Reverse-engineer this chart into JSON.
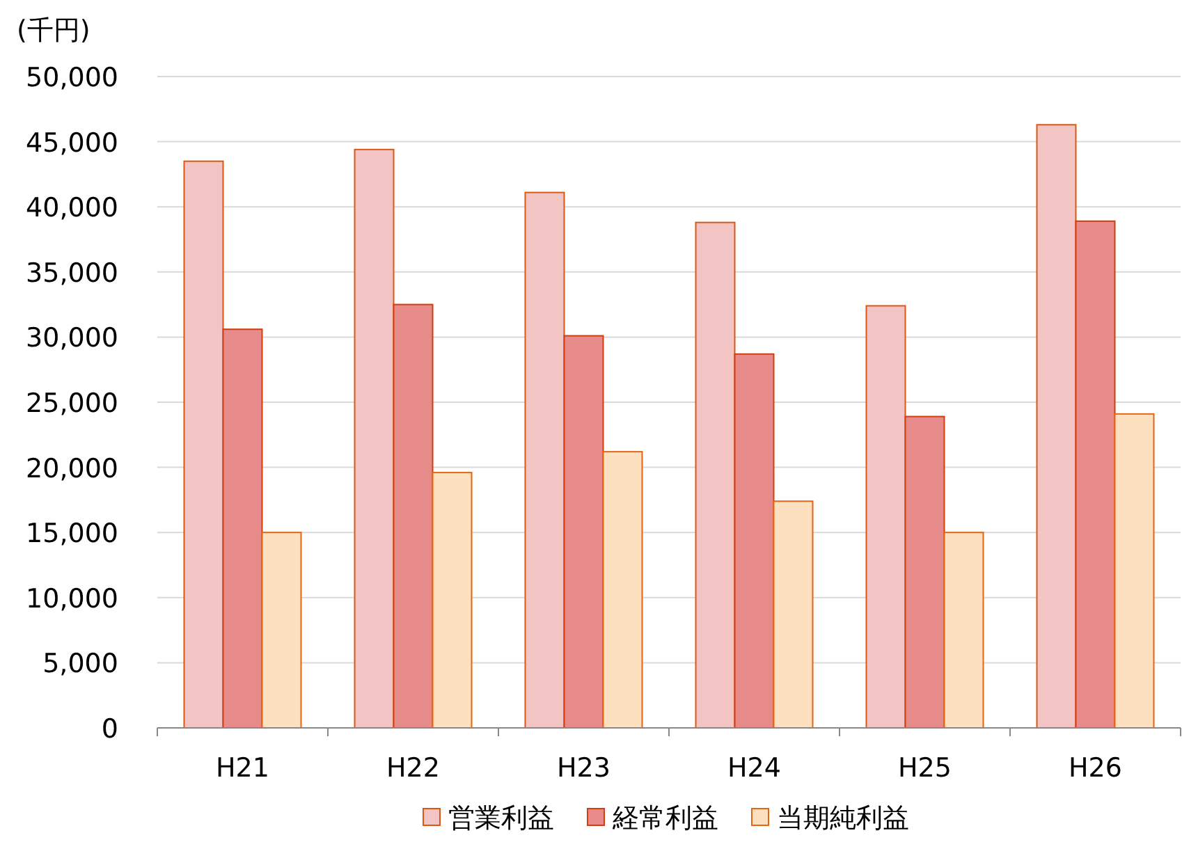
{
  "chart_data": {
    "type": "bar",
    "ylabel": "(千円)",
    "categories": [
      "H21",
      "H22",
      "H23",
      "H24",
      "H25",
      "H26"
    ],
    "series": [
      {
        "name": "営業利益",
        "color": "#f2c4c4",
        "values": [
          43500,
          44400,
          41100,
          38800,
          32400,
          46300
        ]
      },
      {
        "name": "経常利益",
        "color": "#e68a8a",
        "values": [
          30600,
          32500,
          30100,
          28700,
          23900,
          38900
        ]
      },
      {
        "name": "当期純利益",
        "color": "#fde0c0",
        "values": [
          15000,
          19600,
          21200,
          17400,
          15000,
          24100
        ]
      }
    ],
    "ylim": [
      0,
      50000
    ],
    "yticks": [
      0,
      {
        "value": 5000,
        "label": "5,000"
      },
      {
        "value": 10000,
        "label": "10,000"
      },
      {
        "value": 15000,
        "label": "15,000"
      },
      {
        "value": 20000,
        "label": "20,000"
      },
      {
        "value": 25000,
        "label": "25,000"
      },
      {
        "value": 30000,
        "label": "30,000"
      },
      {
        "value": 35000,
        "label": "35,000"
      },
      {
        "value": 40000,
        "label": "40,000"
      },
      {
        "value": 45000,
        "label": "45,000"
      },
      {
        "value": 50000,
        "label": "50,000"
      }
    ],
    "grid": "y",
    "legend": "bottom"
  }
}
